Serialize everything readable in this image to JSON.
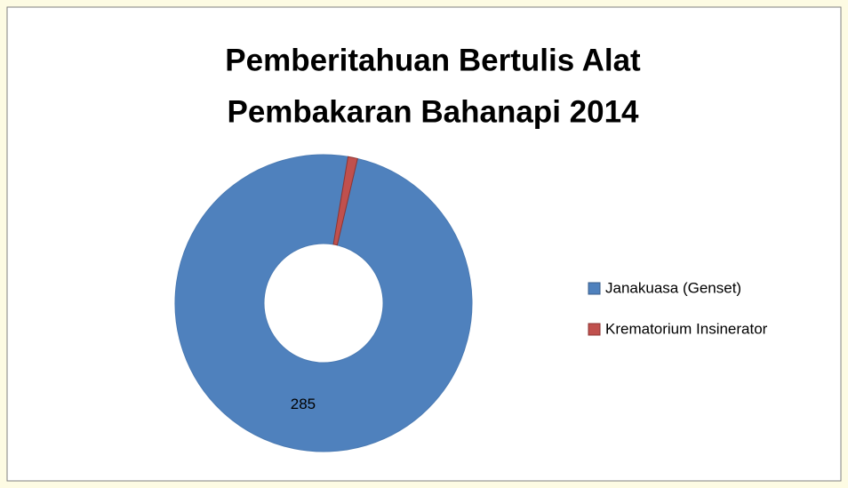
{
  "chart_data": {
    "type": "donut",
    "title": [
      "Pemberitahuan Bertulis Alat",
      "Pembakaran Bahanapi 2014"
    ],
    "categories": [
      "Janakuasa (Genset)",
      "Krematorium Insinerator"
    ],
    "values": [
      285,
      3
    ],
    "value_labels": [
      "285",
      null
    ],
    "colors": [
      "#4f81bd",
      "#c0504d"
    ],
    "legend": "right"
  }
}
